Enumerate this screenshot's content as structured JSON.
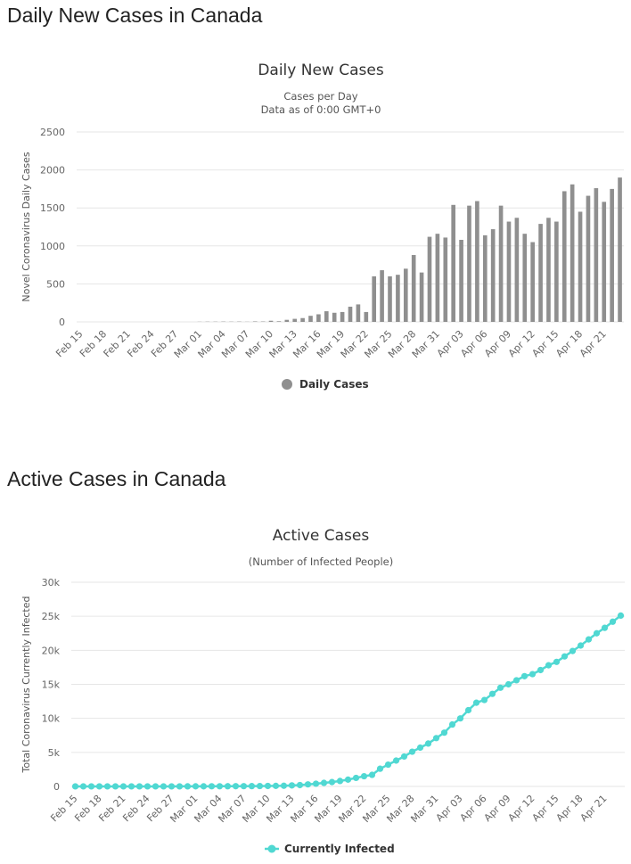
{
  "sections": [
    {
      "heading": "Daily New Cases in Canada"
    },
    {
      "heading": "Active Cases in Canada"
    }
  ],
  "chart_data": [
    {
      "type": "bar",
      "title": "Daily New Cases",
      "subtitle": [
        "Cases per Day",
        "Data as of 0:00 GMT+0"
      ],
      "ylabel": "Novel Coronavirus Daily Cases",
      "xlabel": "",
      "ylim": [
        0,
        2500
      ],
      "yticks": [
        0,
        500,
        1000,
        1500,
        2000,
        2500
      ],
      "ytick_labels": [
        "0",
        "500",
        "1000",
        "1500",
        "2000",
        "2500"
      ],
      "legend": {
        "label": "Daily Cases",
        "position": "bottom-center"
      },
      "color": "#8f8f8f",
      "categories": [
        "Feb 15",
        "Feb 16",
        "Feb 17",
        "Feb 18",
        "Feb 19",
        "Feb 20",
        "Feb 21",
        "Feb 22",
        "Feb 23",
        "Feb 24",
        "Feb 25",
        "Feb 26",
        "Feb 27",
        "Feb 28",
        "Feb 29",
        "Mar 01",
        "Mar 02",
        "Mar 03",
        "Mar 04",
        "Mar 05",
        "Mar 06",
        "Mar 07",
        "Mar 08",
        "Mar 09",
        "Mar 10",
        "Mar 11",
        "Mar 12",
        "Mar 13",
        "Mar 14",
        "Mar 15",
        "Mar 16",
        "Mar 17",
        "Mar 18",
        "Mar 19",
        "Mar 20",
        "Mar 21",
        "Mar 22",
        "Mar 23",
        "Mar 24",
        "Mar 25",
        "Mar 26",
        "Mar 27",
        "Mar 28",
        "Mar 29",
        "Mar 30",
        "Mar 31",
        "Apr 01",
        "Apr 02",
        "Apr 03",
        "Apr 04",
        "Apr 05",
        "Apr 06",
        "Apr 07",
        "Apr 08",
        "Apr 09",
        "Apr 10",
        "Apr 11",
        "Apr 12",
        "Apr 13",
        "Apr 14",
        "Apr 15",
        "Apr 16",
        "Apr 17",
        "Apr 18",
        "Apr 19",
        "Apr 20",
        "Apr 21",
        "Apr 22",
        "Apr 23"
      ],
      "tick_labels": [
        "Feb 15",
        "Feb 18",
        "Feb 21",
        "Feb 24",
        "Feb 27",
        "Mar 01",
        "Mar 04",
        "Mar 07",
        "Mar 10",
        "Mar 13",
        "Mar 16",
        "Mar 19",
        "Mar 22",
        "Mar 25",
        "Mar 28",
        "Mar 31",
        "Apr 03",
        "Apr 06",
        "Apr 09",
        "Apr 12",
        "Apr 15",
        "Apr 18",
        "Apr 21"
      ],
      "values": [
        0,
        0,
        0,
        0,
        0,
        0,
        0,
        0,
        0,
        0,
        0,
        0,
        0,
        0,
        0,
        2,
        3,
        3,
        4,
        3,
        4,
        2,
        6,
        5,
        15,
        8,
        27,
        40,
        50,
        80,
        100,
        140,
        120,
        130,
        200,
        230,
        130,
        600,
        680,
        600,
        620,
        700,
        880,
        650,
        1120,
        1160,
        1110,
        1540,
        1080,
        1530,
        1590,
        1140,
        1220,
        1530,
        1320,
        1370,
        1160,
        1050,
        1290,
        1370,
        1320,
        1720,
        1810,
        1450,
        1660,
        1760,
        1580,
        1750,
        1900
      ]
    },
    {
      "type": "line",
      "title": "Active Cases",
      "subtitle": [
        "(Number of Infected People)"
      ],
      "ylabel": "Total Coronavirus Currently Infected",
      "xlabel": "",
      "ylim": [
        0,
        30000
      ],
      "yticks": [
        0,
        5000,
        10000,
        15000,
        20000,
        25000,
        30000
      ],
      "ytick_labels": [
        "0",
        "5k",
        "10k",
        "15k",
        "20k",
        "25k",
        "30k"
      ],
      "legend": {
        "label": "Currently Infected",
        "position": "bottom-center"
      },
      "color": "#50d8d2",
      "categories": [
        "Feb 15",
        "Feb 16",
        "Feb 17",
        "Feb 18",
        "Feb 19",
        "Feb 20",
        "Feb 21",
        "Feb 22",
        "Feb 23",
        "Feb 24",
        "Feb 25",
        "Feb 26",
        "Feb 27",
        "Feb 28",
        "Feb 29",
        "Mar 01",
        "Mar 02",
        "Mar 03",
        "Mar 04",
        "Mar 05",
        "Mar 06",
        "Mar 07",
        "Mar 08",
        "Mar 09",
        "Mar 10",
        "Mar 11",
        "Mar 12",
        "Mar 13",
        "Mar 14",
        "Mar 15",
        "Mar 16",
        "Mar 17",
        "Mar 18",
        "Mar 19",
        "Mar 20",
        "Mar 21",
        "Mar 22",
        "Mar 23",
        "Mar 24",
        "Mar 25",
        "Mar 26",
        "Mar 27",
        "Mar 28",
        "Mar 29",
        "Mar 30",
        "Mar 31",
        "Apr 01",
        "Apr 02",
        "Apr 03",
        "Apr 04",
        "Apr 05",
        "Apr 06",
        "Apr 07",
        "Apr 08",
        "Apr 09",
        "Apr 10",
        "Apr 11",
        "Apr 12",
        "Apr 13",
        "Apr 14",
        "Apr 15",
        "Apr 16",
        "Apr 17",
        "Apr 18",
        "Apr 19",
        "Apr 20",
        "Apr 21",
        "Apr 22",
        "Apr 23"
      ],
      "tick_labels": [
        "Feb 15",
        "Feb 18",
        "Feb 21",
        "Feb 24",
        "Feb 27",
        "Mar 01",
        "Mar 04",
        "Mar 07",
        "Mar 10",
        "Mar 13",
        "Mar 16",
        "Mar 19",
        "Mar 22",
        "Mar 25",
        "Mar 28",
        "Mar 31",
        "Apr 03",
        "Apr 06",
        "Apr 09",
        "Apr 12",
        "Apr 15",
        "Apr 18",
        "Apr 21"
      ],
      "values": [
        5,
        5,
        5,
        5,
        5,
        5,
        5,
        5,
        5,
        6,
        6,
        7,
        8,
        10,
        12,
        15,
        18,
        22,
        26,
        30,
        35,
        40,
        45,
        55,
        70,
        80,
        100,
        150,
        200,
        300,
        400,
        520,
        640,
        800,
        1000,
        1250,
        1500,
        1700,
        2600,
        3200,
        3800,
        4400,
        5100,
        5700,
        6300,
        7100,
        7900,
        9100,
        10000,
        11200,
        12300,
        12700,
        13600,
        14500,
        15000,
        15600,
        16200,
        16500,
        17100,
        17800,
        18300,
        19100,
        19900,
        20700,
        21600,
        22500,
        23300,
        24200,
        25100
      ]
    }
  ]
}
